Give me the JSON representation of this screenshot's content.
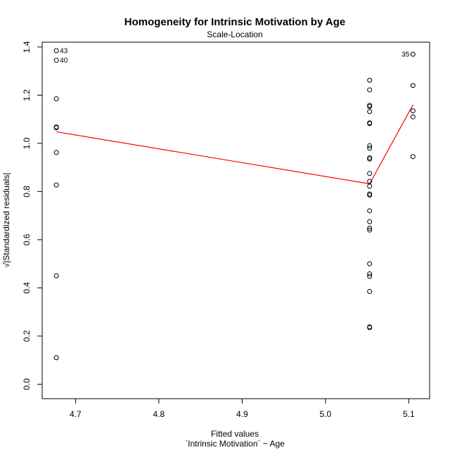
{
  "chart_data": {
    "type": "scatter",
    "title": "Homogeneity for Intrinsic Motivation by Age",
    "subtitle": "Scale-Location",
    "xlabel": "Fitted values",
    "xlabel2": "`Intrinsic Motivation` ~ Age",
    "ylabel": "√|Standardized residuals|",
    "xlim": [
      4.66,
      5.125
    ],
    "ylim": [
      -0.06,
      1.42
    ],
    "xticks": [
      4.7,
      4.8,
      4.9,
      5.0,
      5.1
    ],
    "xtick_labels": [
      "4.7",
      "4.8",
      "4.9",
      "5.0",
      "5.1"
    ],
    "yticks": [
      0.0,
      0.2,
      0.4,
      0.6,
      0.8,
      1.0,
      1.2,
      1.4
    ],
    "ytick_labels": [
      "0.0",
      "0.2",
      "0.4",
      "0.6",
      "0.8",
      "1.0",
      "1.2",
      "1.4"
    ],
    "grid": false,
    "points": [
      {
        "x": 4.677,
        "y": 1.385,
        "label": "43"
      },
      {
        "x": 4.677,
        "y": 1.345,
        "label": "40"
      },
      {
        "x": 4.677,
        "y": 1.185
      },
      {
        "x": 4.677,
        "y": 1.068
      },
      {
        "x": 4.677,
        "y": 1.065
      },
      {
        "x": 4.677,
        "y": 0.962
      },
      {
        "x": 4.677,
        "y": 0.827
      },
      {
        "x": 4.677,
        "y": 0.45
      },
      {
        "x": 4.677,
        "y": 0.11
      },
      {
        "x": 5.053,
        "y": 1.262
      },
      {
        "x": 5.053,
        "y": 1.222
      },
      {
        "x": 5.053,
        "y": 1.158
      },
      {
        "x": 5.053,
        "y": 1.153
      },
      {
        "x": 5.053,
        "y": 1.132
      },
      {
        "x": 5.053,
        "y": 1.085
      },
      {
        "x": 5.053,
        "y": 1.082
      },
      {
        "x": 5.053,
        "y": 0.99
      },
      {
        "x": 5.053,
        "y": 0.98
      },
      {
        "x": 5.053,
        "y": 0.94
      },
      {
        "x": 5.053,
        "y": 0.935
      },
      {
        "x": 5.053,
        "y": 0.875
      },
      {
        "x": 5.053,
        "y": 0.842
      },
      {
        "x": 5.053,
        "y": 0.822
      },
      {
        "x": 5.053,
        "y": 0.79
      },
      {
        "x": 5.053,
        "y": 0.785
      },
      {
        "x": 5.053,
        "y": 0.72
      },
      {
        "x": 5.053,
        "y": 0.675
      },
      {
        "x": 5.053,
        "y": 0.648
      },
      {
        "x": 5.053,
        "y": 0.64
      },
      {
        "x": 5.053,
        "y": 0.5
      },
      {
        "x": 5.053,
        "y": 0.458
      },
      {
        "x": 5.053,
        "y": 0.448
      },
      {
        "x": 5.053,
        "y": 0.385
      },
      {
        "x": 5.053,
        "y": 0.238
      },
      {
        "x": 5.053,
        "y": 0.235
      },
      {
        "x": 5.105,
        "y": 1.37,
        "label": "35"
      },
      {
        "x": 5.105,
        "y": 1.24
      },
      {
        "x": 5.105,
        "y": 1.135
      },
      {
        "x": 5.105,
        "y": 1.11
      },
      {
        "x": 5.105,
        "y": 0.945
      }
    ],
    "smooth_line": {
      "color": "#ff0000",
      "points": [
        [
          4.677,
          1.048
        ],
        [
          5.053,
          0.832
        ],
        [
          5.105,
          1.16
        ]
      ]
    }
  }
}
